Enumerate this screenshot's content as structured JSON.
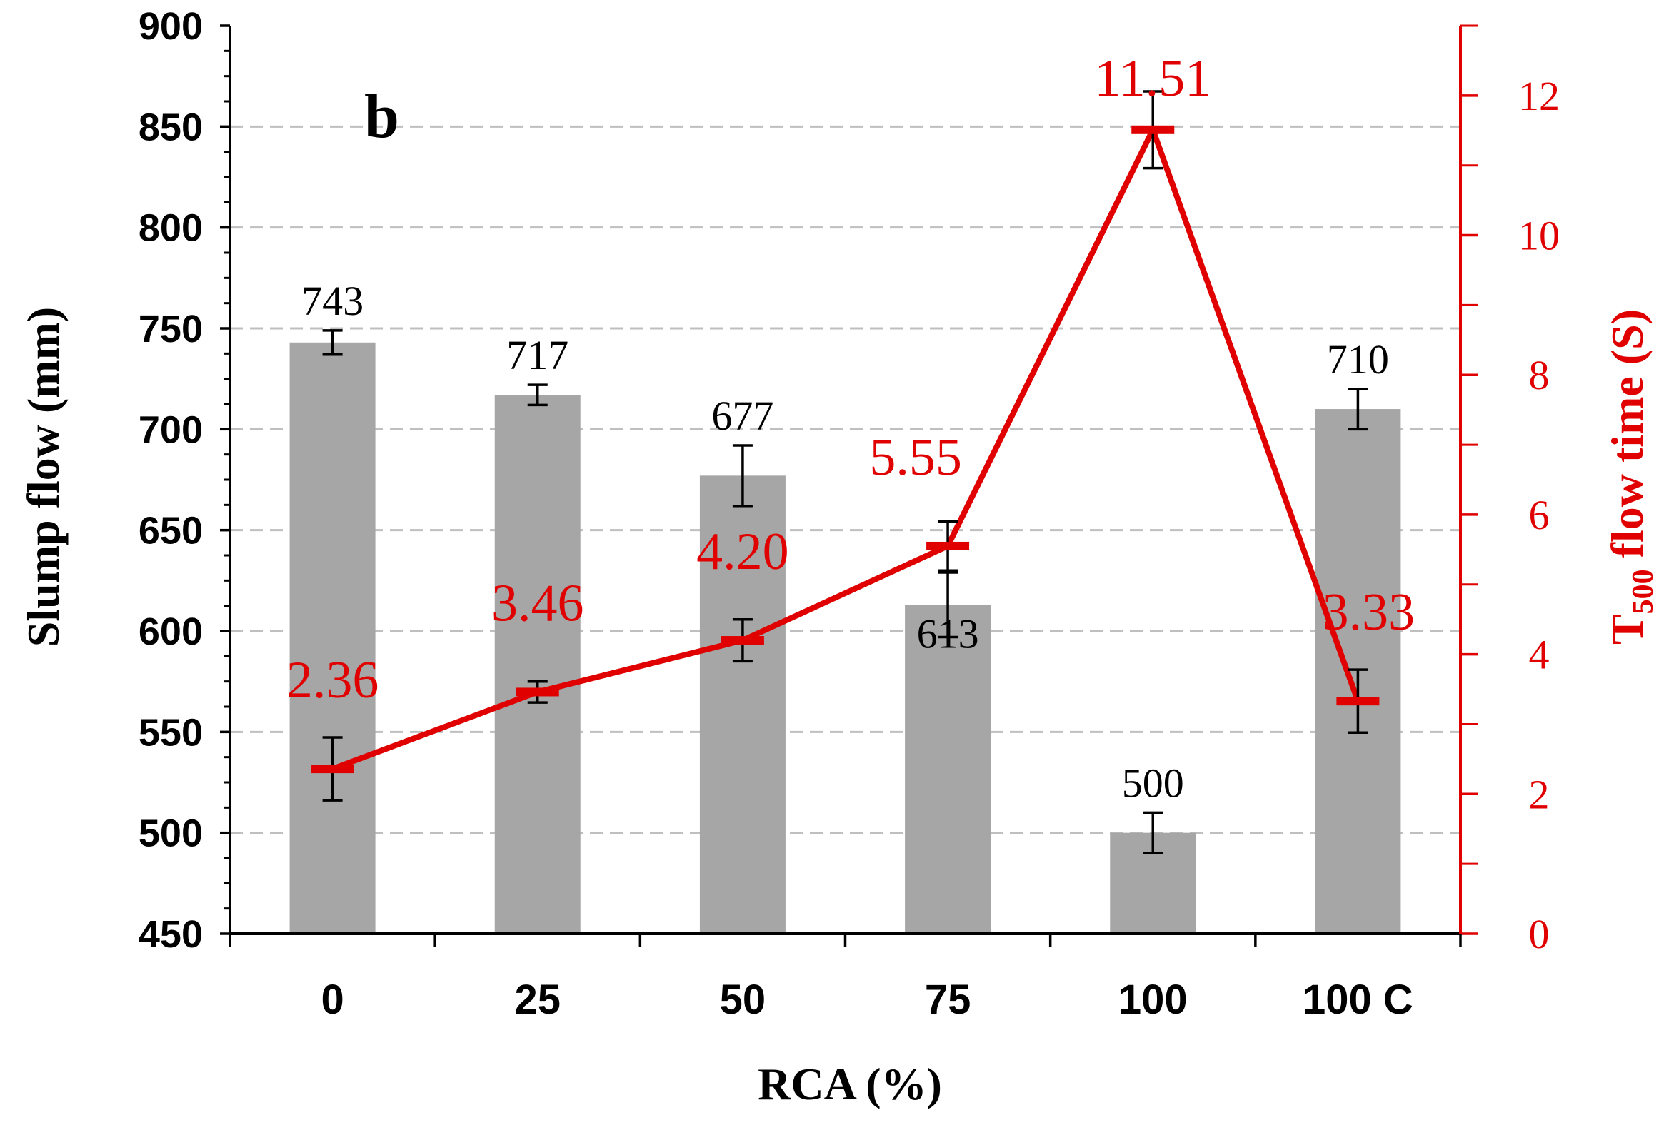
{
  "chart_data": {
    "type": "bar",
    "panel_label": "b",
    "xlabel": "RCA (%)",
    "ylabel_left": "Slump flow (mm)",
    "ylabel_right": {
      "prefix": "T",
      "subscript": "500",
      "suffix": " flow time (S)"
    },
    "categories": [
      "0",
      "25",
      "50",
      "75",
      "100",
      "100 C"
    ],
    "y_left_range": [
      450,
      900
    ],
    "y_left_ticks": [
      450,
      500,
      550,
      600,
      650,
      700,
      750,
      800,
      850,
      900
    ],
    "y_right_range": [
      0,
      13
    ],
    "y_right_ticks": [
      0,
      2,
      4,
      6,
      8,
      10,
      12
    ],
    "grid": true,
    "series": [
      {
        "name": "Slump flow",
        "type": "bar",
        "axis": "left",
        "values": [
          743,
          717,
          677,
          613,
          500,
          710
        ],
        "labels": [
          "743",
          "717",
          "677",
          "613",
          "500",
          "710"
        ],
        "error": [
          6,
          5,
          15,
          16,
          10,
          10
        ],
        "color": "#a6a6a6"
      },
      {
        "name": "T500 flow time",
        "type": "line",
        "axis": "right",
        "values": [
          2.36,
          3.46,
          4.2,
          5.55,
          11.51,
          3.33
        ],
        "labels": [
          "2.36",
          "3.46",
          "4.20",
          "5.55",
          "11.51",
          "3.33"
        ],
        "error": [
          0.45,
          0.15,
          0.3,
          0.35,
          0.55,
          0.45
        ],
        "color": "#e00000"
      }
    ]
  }
}
